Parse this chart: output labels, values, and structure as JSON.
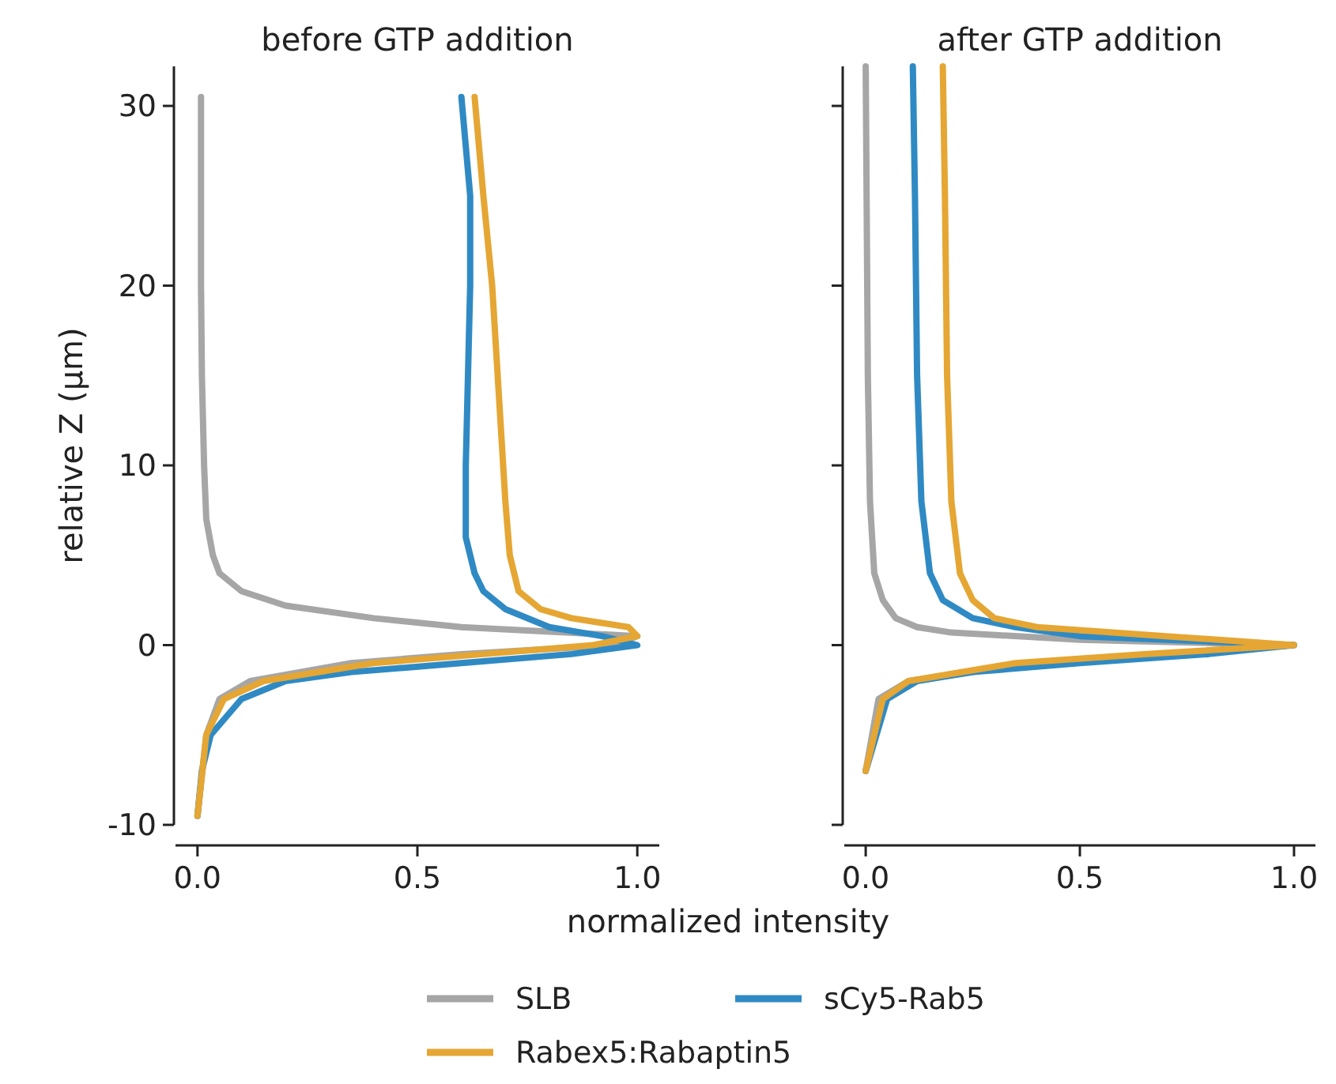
{
  "chart_data": [
    {
      "type": "line",
      "title": "before GTP addition",
      "xlabel": "normalized intensity",
      "ylabel": "relative Z (µm)",
      "xlim": [
        -0.05,
        1.05
      ],
      "ylim": [
        -10,
        32.2
      ],
      "xticks": [
        {
          "value": 0,
          "label": "0.0"
        },
        {
          "value": 0.5,
          "label": "0.5"
        },
        {
          "value": 1,
          "label": "1.0"
        }
      ],
      "yticks": [
        -10,
        0,
        10,
        20,
        30
      ],
      "legend": "bottom",
      "series": [
        {
          "name": "SLB",
          "color": "#a6a6a6",
          "x": [
            0,
            0.02,
            0.05,
            0.12,
            0.35,
            0.6,
            0.95,
            1.0,
            0.6,
            0.4,
            0.2,
            0.1,
            0.05,
            0.035,
            0.02,
            0.015,
            0.01,
            0.008,
            0.008
          ],
          "values": [
            -9.5,
            -5,
            -3,
            -2,
            -1,
            -0.5,
            0,
            0.5,
            1,
            1.5,
            2.2,
            3,
            4,
            5,
            7,
            10,
            15,
            20,
            30.5
          ]
        },
        {
          "name": "sCy5-Rab5",
          "color": "#2f8ac4",
          "x": [
            0,
            0.01,
            0.03,
            0.1,
            0.2,
            0.35,
            0.6,
            0.85,
            1.0,
            0.92,
            0.8,
            0.7,
            0.65,
            0.63,
            0.61,
            0.61,
            0.62,
            0.62,
            0.6
          ],
          "values": [
            -9.5,
            -7,
            -5,
            -3,
            -2,
            -1.5,
            -1,
            -0.5,
            0,
            0.5,
            1,
            2,
            3,
            4,
            6,
            10,
            20,
            25,
            30.5
          ]
        },
        {
          "name": "Rabex5:Rabaptin5",
          "color": "#e5a633",
          "x": [
            0,
            0.02,
            0.06,
            0.15,
            0.4,
            0.65,
            0.9,
            1.0,
            0.98,
            0.85,
            0.78,
            0.73,
            0.71,
            0.7,
            0.69,
            0.68,
            0.67,
            0.65,
            0.63
          ],
          "values": [
            -9.5,
            -5,
            -3,
            -2,
            -1,
            -0.5,
            0,
            0.5,
            1,
            1.5,
            2,
            3,
            5,
            8,
            12,
            16,
            20,
            25,
            30.5
          ]
        }
      ]
    },
    {
      "type": "line",
      "title": "after GTP addition",
      "xlim": [
        -0.05,
        1.05
      ],
      "ylim": [
        -10,
        32.2
      ],
      "xticks": [
        {
          "value": 0,
          "label": "0.0"
        },
        {
          "value": 0.5,
          "label": "0.5"
        },
        {
          "value": 1,
          "label": "1.0"
        }
      ],
      "yticks": [
        -10,
        0,
        10,
        20,
        30
      ],
      "tick_labels": "x",
      "series": [
        {
          "color": "#a6a6a6",
          "x": [
            0,
            0.03,
            0.1,
            0.4,
            0.7,
            1.0,
            0.5,
            0.2,
            0.12,
            0.07,
            0.04,
            0.02,
            0.01,
            0.005,
            0
          ],
          "values": [
            -7,
            -3,
            -2,
            -1,
            -0.5,
            0,
            0.3,
            0.7,
            1,
            1.5,
            2.5,
            4,
            8,
            15,
            32.2
          ]
        },
        {
          "color": "#2f8ac4",
          "x": [
            0,
            0.05,
            0.12,
            0.25,
            0.5,
            0.8,
            1.0,
            0.5,
            0.35,
            0.25,
            0.18,
            0.15,
            0.13,
            0.12,
            0.115,
            0.11
          ],
          "values": [
            -7,
            -3,
            -2,
            -1.5,
            -1,
            -0.5,
            0,
            0.5,
            1,
            1.5,
            2.5,
            4,
            8,
            15,
            25,
            32.2
          ]
        },
        {
          "color": "#e5a633",
          "x": [
            0,
            0.04,
            0.1,
            0.35,
            0.65,
            1.0,
            0.7,
            0.4,
            0.3,
            0.25,
            0.22,
            0.2,
            0.19,
            0.185,
            0.18
          ],
          "values": [
            -7,
            -3,
            -2,
            -1,
            -0.5,
            0,
            0.5,
            1,
            1.5,
            2.5,
            4,
            8,
            15,
            25,
            32.2
          ]
        }
      ]
    }
  ]
}
